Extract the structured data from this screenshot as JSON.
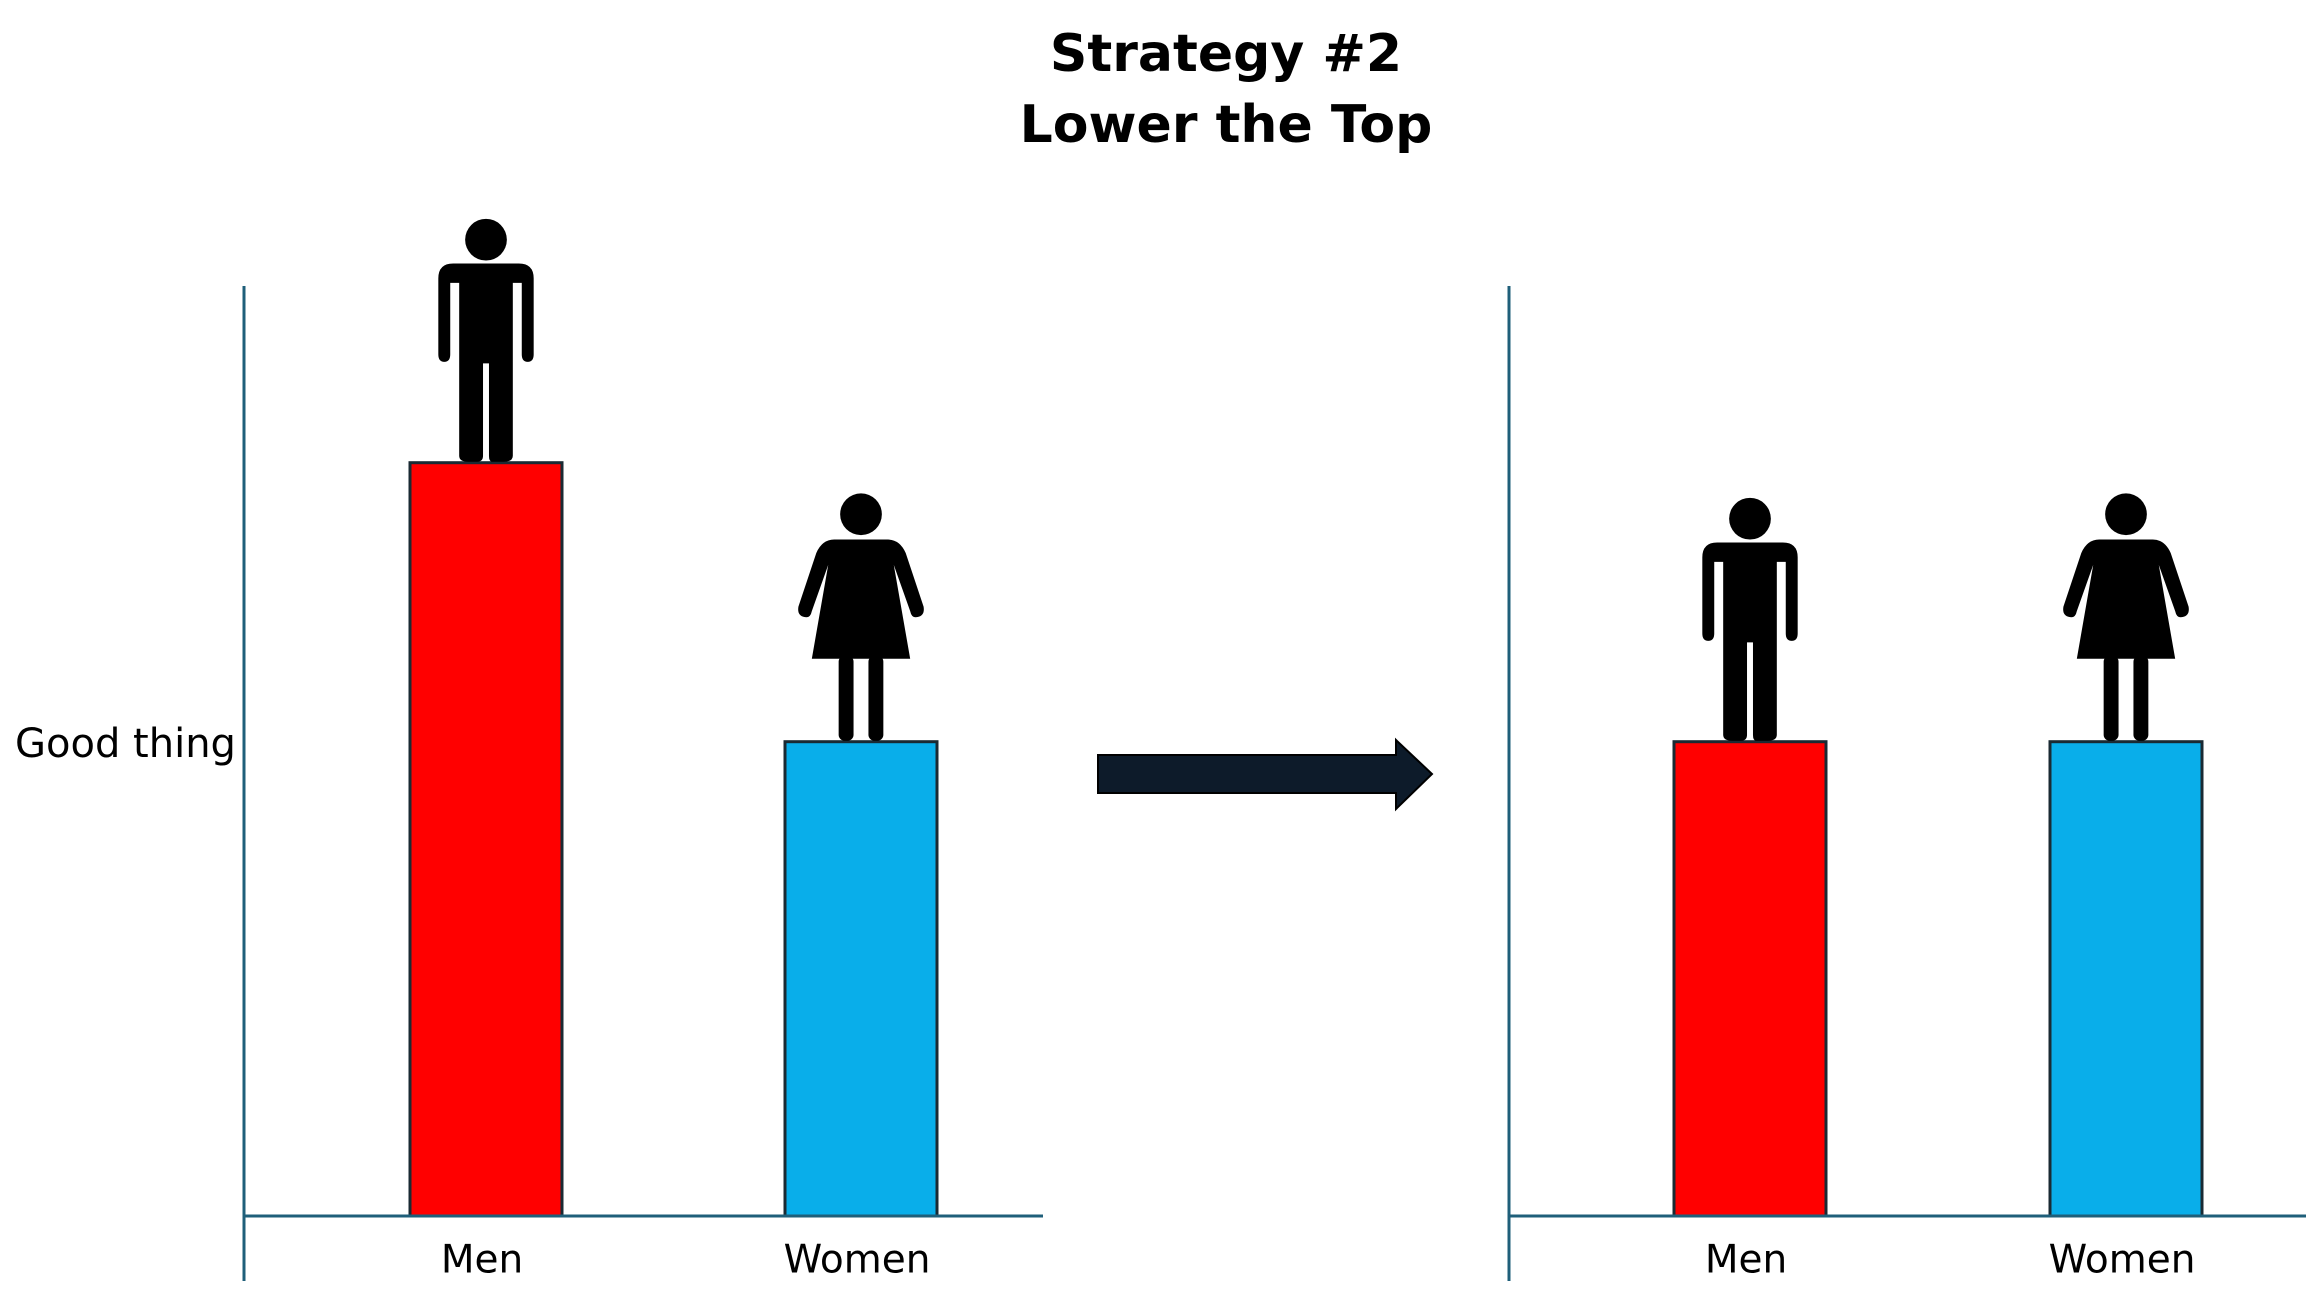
{
  "title": [
    "Strategy #2",
    "Lower the Top"
  ],
  "chart_data": [
    {
      "type": "bar",
      "ylabel": "Good thing",
      "categories": [
        "Men",
        "Women"
      ],
      "values": [
        81,
        51
      ],
      "colors": [
        "#ff0000",
        "#09aeea"
      ],
      "ylim": [
        0,
        100
      ]
    },
    {
      "type": "bar",
      "categories": [
        "Men",
        "Women"
      ],
      "values": [
        51,
        51
      ],
      "colors": [
        "#ff0000",
        "#09aeea"
      ],
      "ylim": [
        0,
        100
      ]
    }
  ]
}
